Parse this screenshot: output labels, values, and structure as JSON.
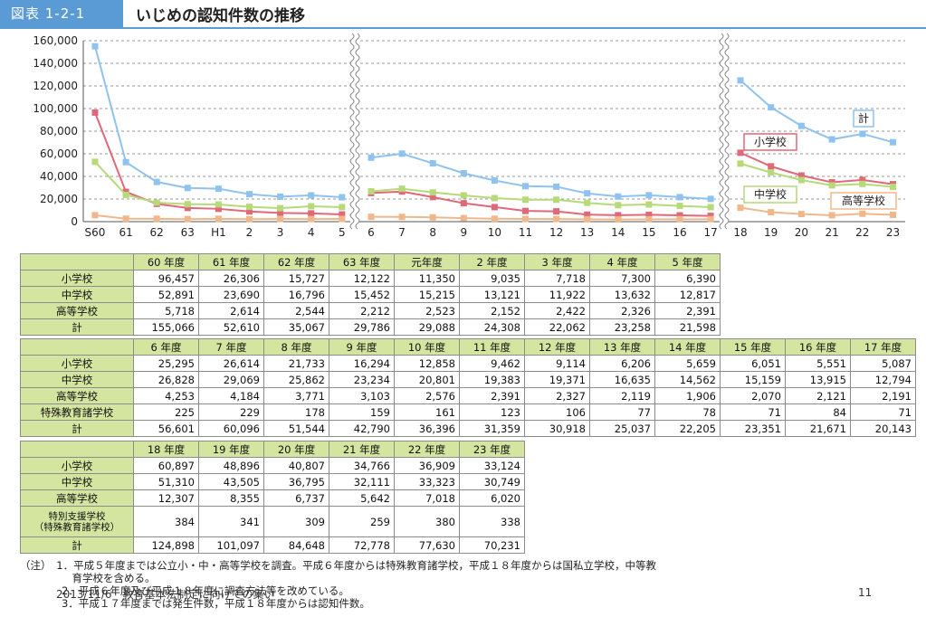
{
  "header": {
    "badge": "図表 1-2-1",
    "title": "いじめの認知件数の推移"
  },
  "chart_data": {
    "type": "line",
    "ylim": [
      0,
      160000
    ],
    "yticks": [
      "160,000",
      "140,000",
      "120,000",
      "100,000",
      "80,000",
      "60,000",
      "40,000",
      "20,000",
      "0"
    ],
    "panels": [
      {
        "x": [
          "S60",
          "61",
          "62",
          "63",
          "H1",
          "2",
          "3",
          "4",
          "5"
        ],
        "series": [
          {
            "name": "計",
            "color": "#8ec3ef",
            "values": [
              155066,
              52610,
              35067,
              29786,
              29088,
              24308,
              22062,
              23258,
              21598
            ]
          },
          {
            "name": "小学校",
            "color": "#e06878",
            "values": [
              96457,
              26306,
              15727,
              12122,
              11350,
              9035,
              7718,
              7300,
              6390
            ]
          },
          {
            "name": "中学校",
            "color": "#b6d97a",
            "values": [
              52891,
              23690,
              16796,
              15452,
              15215,
              13121,
              11922,
              13632,
              12817
            ]
          },
          {
            "name": "高等学校",
            "color": "#f0b88a",
            "values": [
              5718,
              2614,
              2544,
              2212,
              2523,
              2152,
              2422,
              2326,
              2391
            ]
          }
        ]
      },
      {
        "x": [
          "6",
          "7",
          "8",
          "9",
          "10",
          "11",
          "12",
          "13",
          "14",
          "15",
          "16",
          "17"
        ],
        "series": [
          {
            "name": "計",
            "color": "#8ec3ef",
            "values": [
              56601,
              60096,
              51544,
              42790,
              36396,
              31359,
              30918,
              25037,
              22205,
              23351,
              21671,
              20143
            ]
          },
          {
            "name": "小学校",
            "color": "#e06878",
            "values": [
              25295,
              26614,
              21733,
              16294,
              12858,
              9462,
              9114,
              6206,
              5659,
              6051,
              5551,
              5087
            ]
          },
          {
            "name": "中学校",
            "color": "#b6d97a",
            "values": [
              26828,
              29069,
              25862,
              23234,
              20801,
              19383,
              19371,
              16635,
              14562,
              15159,
              13915,
              12794
            ]
          },
          {
            "name": "高等学校",
            "color": "#f0b88a",
            "values": [
              4253,
              4184,
              3771,
              3103,
              2576,
              2391,
              2327,
              2119,
              1906,
              2070,
              2121,
              2191
            ]
          }
        ]
      },
      {
        "x": [
          "18",
          "19",
          "20",
          "21",
          "22",
          "23"
        ],
        "series": [
          {
            "name": "計",
            "color": "#8ec3ef",
            "values": [
              124898,
              101097,
              84648,
              72778,
              77630,
              70231
            ]
          },
          {
            "name": "小学校",
            "color": "#e06878",
            "values": [
              60897,
              48896,
              40807,
              34766,
              36909,
              33124
            ]
          },
          {
            "name": "中学校",
            "color": "#b6d97a",
            "values": [
              51310,
              43505,
              36795,
              32111,
              33323,
              30749
            ]
          },
          {
            "name": "高等学校",
            "color": "#f0b88a",
            "values": [
              12307,
              8355,
              6737,
              5642,
              7018,
              6020
            ]
          }
        ]
      }
    ],
    "legend_labels": [
      {
        "text": "計",
        "color": "#8ec3ef"
      },
      {
        "text": "小学校",
        "color": "#e06878"
      },
      {
        "text": "中学校",
        "color": "#b6d97a"
      },
      {
        "text": "高等学校",
        "color": "#f0b88a"
      }
    ],
    "grid": true
  },
  "tables": [
    {
      "headers": [
        "60 年度",
        "61 年度",
        "62 年度",
        "63 年度",
        "元年度",
        "2 年度",
        "3 年度",
        "4 年度",
        "5 年度"
      ],
      "rows": [
        {
          "label": "小学校",
          "values": [
            "96,457",
            "26,306",
            "15,727",
            "12,122",
            "11,350",
            "9,035",
            "7,718",
            "7,300",
            "6,390"
          ]
        },
        {
          "label": "中学校",
          "values": [
            "52,891",
            "23,690",
            "16,796",
            "15,452",
            "15,215",
            "13,121",
            "11,922",
            "13,632",
            "12,817"
          ]
        },
        {
          "label": "高等学校",
          "values": [
            "5,718",
            "2,614",
            "2,544",
            "2,212",
            "2,523",
            "2,152",
            "2,422",
            "2,326",
            "2,391"
          ]
        },
        {
          "label": "計",
          "values": [
            "155,066",
            "52,610",
            "35,067",
            "29,786",
            "29,088",
            "24,308",
            "22,062",
            "23,258",
            "21,598"
          ]
        }
      ]
    },
    {
      "headers": [
        "6 年度",
        "7 年度",
        "8 年度",
        "9 年度",
        "10 年度",
        "11 年度",
        "12 年度",
        "13 年度",
        "14 年度",
        "15 年度",
        "16 年度",
        "17 年度"
      ],
      "rows": [
        {
          "label": "小学校",
          "values": [
            "25,295",
            "26,614",
            "21,733",
            "16,294",
            "12,858",
            "9,462",
            "9,114",
            "6,206",
            "5,659",
            "6,051",
            "5,551",
            "5,087"
          ]
        },
        {
          "label": "中学校",
          "values": [
            "26,828",
            "29,069",
            "25,862",
            "23,234",
            "20,801",
            "19,383",
            "19,371",
            "16,635",
            "14,562",
            "15,159",
            "13,915",
            "12,794"
          ]
        },
        {
          "label": "高等学校",
          "values": [
            "4,253",
            "4,184",
            "3,771",
            "3,103",
            "2,576",
            "2,391",
            "2,327",
            "2,119",
            "1,906",
            "2,070",
            "2,121",
            "2,191"
          ]
        },
        {
          "label": "特殊教育諸学校",
          "values": [
            "225",
            "229",
            "178",
            "159",
            "161",
            "123",
            "106",
            "77",
            "78",
            "71",
            "84",
            "71"
          ]
        },
        {
          "label": "計",
          "values": [
            "56,601",
            "60,096",
            "51,544",
            "42,790",
            "36,396",
            "31,359",
            "30,918",
            "25,037",
            "22,205",
            "23,351",
            "21,671",
            "20,143"
          ]
        }
      ]
    },
    {
      "headers": [
        "18 年度",
        "19 年度",
        "20 年度",
        "21 年度",
        "22 年度",
        "23 年度"
      ],
      "rows": [
        {
          "label": "小学校",
          "values": [
            "60,897",
            "48,896",
            "40,807",
            "34,766",
            "36,909",
            "33,124"
          ]
        },
        {
          "label": "中学校",
          "values": [
            "51,310",
            "43,505",
            "36,795",
            "32,111",
            "33,323",
            "30,749"
          ]
        },
        {
          "label": "高等学校",
          "values": [
            "12,307",
            "8,355",
            "6,737",
            "5,642",
            "7,018",
            "6,020"
          ]
        },
        {
          "label": "特別支援学校\n（特殊教育諸学校）",
          "values": [
            "384",
            "341",
            "309",
            "259",
            "380",
            "338"
          ]
        },
        {
          "label": "計",
          "values": [
            "124,898",
            "101,097",
            "84,648",
            "72,778",
            "77,630",
            "70,231"
          ]
        }
      ]
    }
  ],
  "notes": {
    "line1": "（注）　1．平成５年度までは公立小・中・高等学校を調査。平成６年度からは特殊教育諸学校，平成１８年度からは国私立学校，中等教",
    "line1b": "　　　　　育学校を含める。",
    "line2": "　　　　2．平成６年度及び平成１８年度に調査方法等を改めている。",
    "line3": "　　　　3．平成１７年度までは発生件数，平成１８年度からは認知件数。"
  },
  "footer": {
    "text": "2013/11/6　教育基本法制定に向けての集い",
    "page": "11"
  }
}
